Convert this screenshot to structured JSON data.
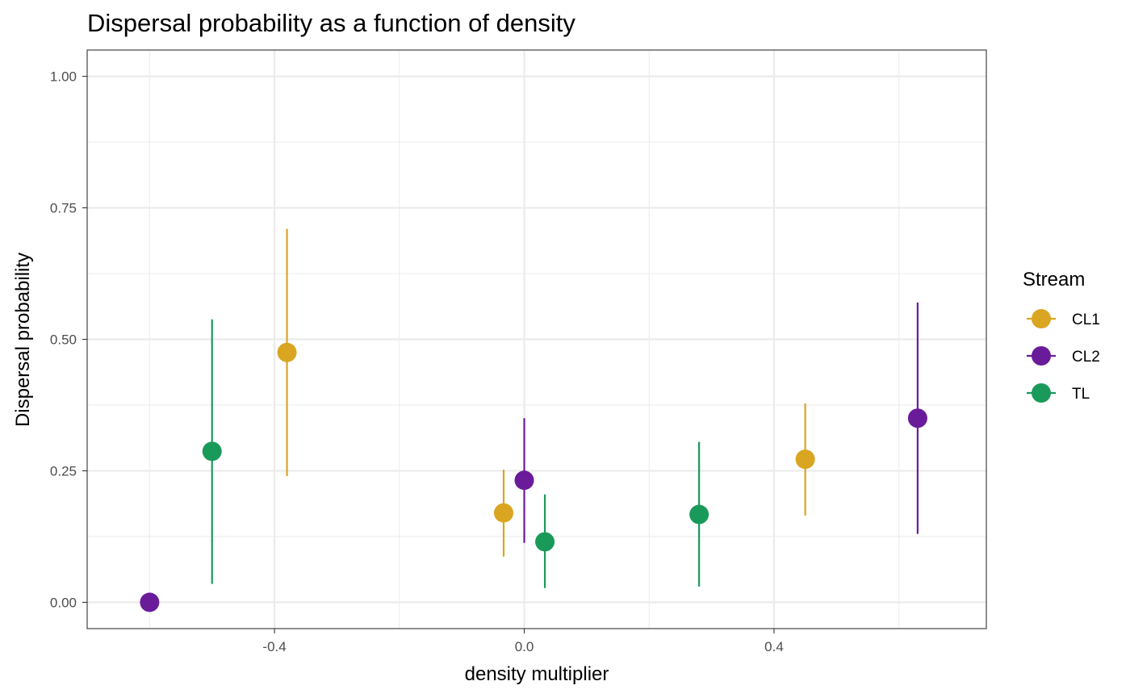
{
  "chart_data": {
    "type": "scatter",
    "title": "Dispersal probability as a function of density",
    "xlabel": "density multiplier",
    "ylabel": "Dispersal probability",
    "xlim": [
      -0.7,
      0.74
    ],
    "ylim": [
      -0.05,
      1.05
    ],
    "x_ticks": [
      -0.4,
      0.0,
      0.4
    ],
    "x_tick_labels": [
      "-0.4",
      "0.0",
      "0.4"
    ],
    "x_minor_ticks": [
      -0.6,
      -0.2,
      0.2,
      0.6
    ],
    "y_ticks": [
      0.0,
      0.25,
      0.5,
      0.75,
      1.0
    ],
    "y_tick_labels": [
      "0.00",
      "0.25",
      "0.50",
      "0.75",
      "1.00"
    ],
    "y_minor_ticks": [
      0.125,
      0.375,
      0.625,
      0.875
    ],
    "grid": true,
    "legend": {
      "title": "Stream",
      "position": "right"
    },
    "series": [
      {
        "name": "CL1",
        "color": "#DAA520",
        "points": [
          {
            "x": -0.38,
            "y": 0.475,
            "lower": 0.24,
            "upper": 0.71
          },
          {
            "x": -0.033,
            "y": 0.17,
            "lower": 0.087,
            "upper": 0.252
          },
          {
            "x": 0.45,
            "y": 0.272,
            "lower": 0.165,
            "upper": 0.378
          }
        ]
      },
      {
        "name": "CL2",
        "color": "#6A1B9A",
        "points": [
          {
            "x": -0.6,
            "y": 0.0,
            "lower": null,
            "upper": null
          },
          {
            "x": 0.0,
            "y": 0.232,
            "lower": 0.113,
            "upper": 0.35
          },
          {
            "x": 0.63,
            "y": 0.35,
            "lower": 0.13,
            "upper": 0.57
          }
        ]
      },
      {
        "name": "TL",
        "color": "#1A9A5A",
        "points": [
          {
            "x": -0.5,
            "y": 0.287,
            "lower": 0.035,
            "upper": 0.538
          },
          {
            "x": 0.033,
            "y": 0.115,
            "lower": 0.027,
            "upper": 0.205
          },
          {
            "x": 0.28,
            "y": 0.167,
            "lower": 0.03,
            "upper": 0.305
          }
        ]
      }
    ]
  }
}
